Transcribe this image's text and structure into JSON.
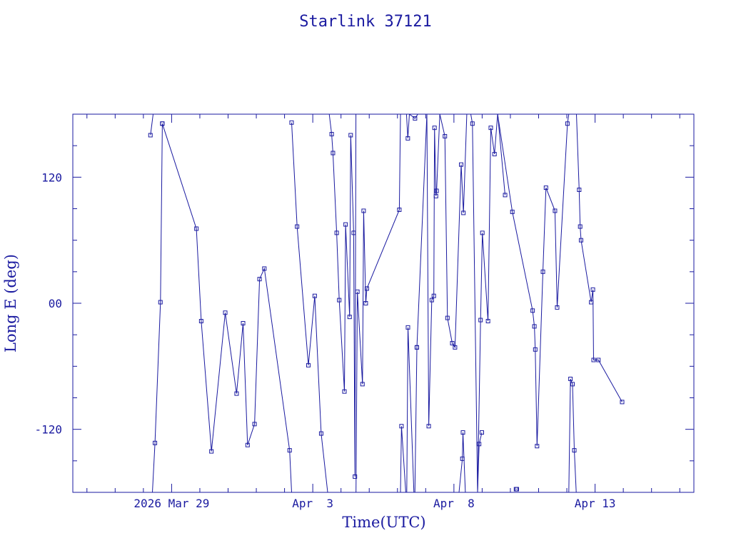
{
  "chart_data": {
    "type": "line",
    "title": "Starlink 37121",
    "xlabel": "Time(UTC)",
    "ylabel": "Long E (deg)",
    "xlim": [
      "2026-03-25T12:00",
      "2026-04-16T12:00"
    ],
    "ylim": [
      -180,
      180
    ],
    "x_ticks": [
      {
        "label": "2026 Mar 29",
        "value": "2026-03-29T00:00"
      },
      {
        "label": "Apr  3",
        "value": "2026-04-03T00:00"
      },
      {
        "label": "Apr  8",
        "value": "2026-04-08T00:00"
      },
      {
        "label": "Apr 13",
        "value": "2026-04-13T00:00"
      }
    ],
    "y_ticks": [
      {
        "label": "120",
        "value": 120
      },
      {
        "label": "00",
        "value": 0
      },
      {
        "label": "-120",
        "value": -120
      }
    ],
    "grid": false,
    "line_color": "#1a1aa0",
    "marker": "square",
    "series": [
      {
        "x": [
          "2026-03-28T06:00",
          "2026-03-28T08:15"
        ],
        "y": [
          160,
          180
        ]
      },
      {
        "x": [
          "2026-03-28T07:40",
          "2026-03-28T09:50",
          "2026-03-28T14:30",
          "2026-03-28T16:05"
        ],
        "y": [
          -180,
          -133,
          1,
          171
        ]
      },
      {
        "x": [
          "2026-03-28T16:05",
          "2026-03-29T21:05",
          "2026-03-30T01:10",
          "2026-03-30T09:50",
          "2026-03-30T21:35",
          "2026-03-31T07:15",
          "2026-03-31T12:45",
          "2026-03-31T16:35",
          "2026-03-31T22:30",
          "2026-04-01T02:45",
          "2026-04-01T06:50",
          "2026-04-02T04:20",
          "2026-04-02T06:00"
        ],
        "y": [
          171,
          71,
          -17,
          -141,
          -9,
          -86,
          -19,
          -135,
          -115,
          23,
          33,
          -140,
          -180
        ]
      },
      {
        "x": [
          "2026-04-02T06:00",
          "2026-04-02T10:40",
          "2026-04-02T20:15",
          "2026-04-03T01:40",
          "2026-04-03T07:10",
          "2026-04-03T12:40"
        ],
        "y": [
          172,
          73,
          -59,
          7,
          -124,
          -180
        ]
      },
      {
        "x": [
          "2026-04-03T14:00",
          "2026-04-03T16:05",
          "2026-04-03T17:10",
          "2026-04-03T20:20",
          "2026-04-03T22:30",
          "2026-04-04T02:55",
          "2026-04-04T03:55",
          "2026-04-04T07:20",
          "2026-04-04T08:15",
          "2026-04-04T10:45",
          "2026-04-04T11:50",
          "2026-04-04T12:40"
        ],
        "y": [
          180,
          161,
          143,
          67,
          3,
          -84,
          75,
          -13,
          160,
          67,
          -165,
          180
        ]
      },
      {
        "x": [
          "2026-04-04T12:45",
          "2026-04-04T13:55",
          "2026-04-04T18:15",
          "2026-04-04T19:15",
          "2026-04-04T21:05",
          "2026-04-04T22:00",
          "2026-04-06T01:35",
          "2026-04-06T02:35"
        ],
        "y": [
          -180,
          11,
          -77,
          88,
          0,
          14,
          89,
          180
        ]
      },
      {
        "x": [
          "2026-04-06T02:35",
          "2026-04-06T03:25",
          "2026-04-06T07:05",
          "2026-04-06T07:50"
        ],
        "y": [
          -180,
          -117,
          -180,
          -180
        ]
      },
      {
        "x": [
          "2026-04-06T07:40",
          "2026-04-06T08:50",
          "2026-04-06T10:10",
          "2026-04-06T14:55",
          "2026-04-06T17:20"
        ],
        "y": [
          180,
          157,
          180,
          176,
          180
        ]
      },
      {
        "x": [
          "2026-04-06T07:55",
          "2026-04-06T08:55",
          "2026-04-06T14:00",
          "2026-04-06T16:10",
          "2026-04-06T18:45"
        ],
        "y": [
          -180,
          -23,
          -180,
          -180,
          -180
        ]
      },
      {
        "x": [
          "2026-04-06T14:50",
          "2026-04-06T16:30",
          "2026-04-06T16:30",
          "2026-04-07T01:00"
        ],
        "y": [
          -180,
          -42,
          -42,
          180
        ]
      },
      {
        "x": [
          "2026-04-07T01:00",
          "2026-04-07T02:35",
          "2026-04-07T05:10",
          "2026-04-07T06:55",
          "2026-04-07T07:30",
          "2026-04-07T08:45",
          "2026-04-07T09:15",
          "2026-04-07T12:00",
          "2026-04-07T16:20",
          "2026-04-07T18:30",
          "2026-04-07T22:35",
          "2026-04-08T00:55",
          "2026-04-08T06:10",
          "2026-04-08T08:05",
          "2026-04-08T10:55"
        ],
        "y": [
          180,
          -117,
          3,
          7,
          167,
          102,
          107,
          180,
          159,
          -14,
          -38,
          -42,
          132,
          86,
          180
        ]
      },
      {
        "x": [
          "2026-04-08T04:20",
          "2026-04-08T07:10",
          "2026-04-08T07:40",
          "2026-04-08T09:45"
        ],
        "y": [
          -180,
          -148,
          -123,
          -180
        ]
      },
      {
        "x": [
          "2026-04-08T06:05",
          "2026-04-08T11:00"
        ],
        "y": [
          -180,
          -180
        ]
      },
      {
        "x": [
          "2026-04-08T14:20",
          "2026-04-08T15:45",
          "2026-04-08T20:05",
          "2026-04-08T22:40",
          "2026-04-09T00:10",
          "2026-04-09T05:00",
          "2026-04-09T07:20",
          "2026-04-09T10:30",
          "2026-04-09T13:10"
        ],
        "y": [
          180,
          171,
          -180,
          -16,
          67,
          -17,
          167,
          142,
          180
        ]
      },
      {
        "x": [
          "2026-04-08T20:05",
          "2026-04-08T21:25",
          "2026-04-08T23:45"
        ],
        "y": [
          -180,
          -134,
          -123
        ]
      },
      {
        "x": [
          "2026-04-09T13:15",
          "2026-04-09T19:30"
        ],
        "y": [
          180,
          103
        ]
      },
      {
        "x": [
          "2026-04-09T13:10",
          "2026-04-10T01:40",
          "2026-04-10T18:55",
          "2026-04-10T20:25",
          "2026-04-10T21:10",
          "2026-04-10T22:40",
          "2026-04-11T03:40",
          "2026-04-11T06:15",
          "2026-04-11T13:55",
          "2026-04-11T15:45",
          "2026-04-12T00:30",
          "2026-04-12T01:40",
          "2026-04-12T05:50"
        ],
        "y": [
          180,
          87,
          -7,
          -22,
          -44,
          -136,
          30,
          110,
          88,
          -4,
          171,
          180,
          180
        ]
      },
      {
        "x": [
          "2026-04-12T01:40",
          "2026-04-12T03:05",
          "2026-04-12T04:50",
          "2026-04-12T06:20",
          "2026-04-12T08:00"
        ],
        "y": [
          -180,
          -72,
          -77,
          -140,
          -180
        ]
      },
      {
        "x": [
          "2026-04-12T08:10",
          "2026-04-12T10:30",
          "2026-04-12T11:20",
          "2026-04-12T12:05",
          "2026-04-12T20:40",
          "2026-04-12T22:10",
          "2026-04-12T22:45",
          "2026-04-13T02:50",
          "2026-04-13T23:00"
        ],
        "y": [
          180,
          108,
          73,
          60,
          1,
          13,
          -54,
          -54,
          -94
        ]
      },
      {
        "x": [
          "2026-04-10T04:45",
          "2026-04-10T05:30"
        ],
        "y": [
          -177,
          -177
        ]
      }
    ]
  }
}
